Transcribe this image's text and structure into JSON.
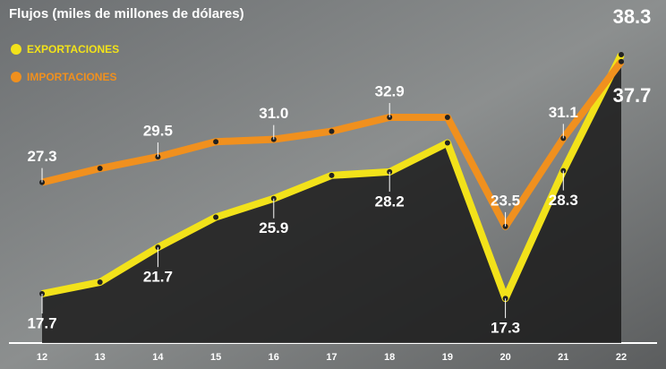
{
  "chart_data": {
    "type": "line",
    "title": "Flujos (miles de millones de dólares)",
    "categories": [
      "12",
      "13",
      "14",
      "15",
      "16",
      "17",
      "18",
      "19",
      "20",
      "21",
      "22"
    ],
    "ylim": [
      15,
      40
    ],
    "series": [
      {
        "name": "EXPORTACIONES",
        "color": "#f2e21a",
        "values": [
          17.7,
          18.7,
          21.7,
          24.3,
          25.9,
          27.9,
          28.2,
          30.7,
          17.3,
          28.3,
          38.3
        ],
        "value_labels": [
          "17.7",
          null,
          "21.7",
          null,
          "25.9",
          null,
          "28.2",
          null,
          "17.3",
          "28.3",
          "38.3"
        ]
      },
      {
        "name": "IMPORTACIONES",
        "color": "#f0901e",
        "values": [
          27.3,
          28.5,
          29.5,
          30.8,
          31.0,
          31.7,
          32.9,
          32.9,
          23.5,
          31.1,
          37.7
        ],
        "value_labels": [
          "27.3",
          null,
          "29.5",
          null,
          "31.0",
          null,
          "32.9",
          null,
          "23.5",
          "31.1",
          "37.7"
        ]
      }
    ]
  }
}
